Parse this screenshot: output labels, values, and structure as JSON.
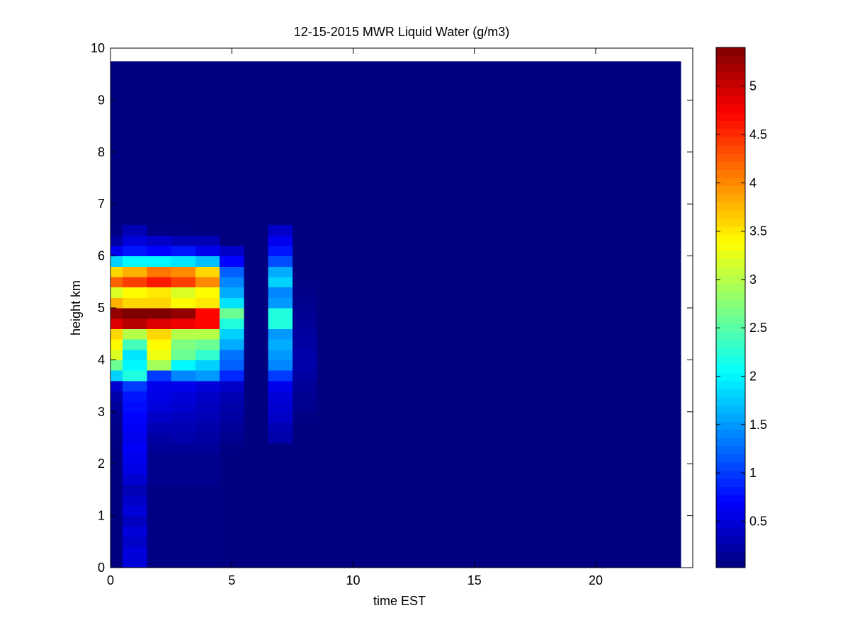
{
  "chart_data": {
    "type": "heatmap",
    "title": "12-15-2015 MWR Liquid Water (g/m3)",
    "xlabel": "time EST",
    "ylabel": "height km",
    "xlim": [
      0,
      24
    ],
    "ylim": [
      0,
      10
    ],
    "x_ticks": [
      0,
      5,
      10,
      15,
      20
    ],
    "y_ticks": [
      0,
      1,
      2,
      3,
      4,
      5,
      6,
      7,
      8,
      9,
      10
    ],
    "colormap": "jet",
    "colorbar": {
      "range": [
        0.02,
        5.4
      ],
      "ticks": [
        0.5,
        1,
        1.5,
        2,
        2.5,
        3,
        3.5,
        4,
        4.5,
        5
      ],
      "tick_labels": [
        "0.5",
        "1",
        "1.5",
        "2",
        "2.5",
        "3",
        "3.5",
        "4",
        "4.5",
        "5"
      ]
    },
    "x_edges": [
      0,
      0.5,
      1.5,
      2.5,
      3.5,
      4.5,
      5.5,
      6.5,
      7.5,
      8.5,
      23.5
    ],
    "y_edges": [
      0,
      0.2,
      0.4,
      0.6,
      0.8,
      1.0,
      1.2,
      1.4,
      1.6,
      1.8,
      2.0,
      2.2,
      2.4,
      2.6,
      2.8,
      3.0,
      3.2,
      3.4,
      3.6,
      3.8,
      4.0,
      4.2,
      4.4,
      4.6,
      4.8,
      5.0,
      5.2,
      5.4,
      5.6,
      5.8,
      6.0,
      6.2,
      6.4,
      6.6,
      6.8,
      7.0,
      9.75
    ],
    "column_values": [
      [
        0.02,
        0.02,
        0.02,
        0.02,
        0.02,
        0.02,
        0.02,
        0.02,
        0.02,
        0.02,
        0.02,
        0.03,
        0.05,
        0.07,
        0.1,
        0.15,
        0.25,
        0.45,
        1.8,
        2.6,
        3.2,
        3.4,
        3.6,
        4.9,
        5.3,
        3.8,
        3.2,
        4.2,
        3.6,
        1.8,
        0.6,
        0.2,
        0.05,
        0.03,
        0.02,
        0.02
      ],
      [
        0.5,
        0.5,
        0.4,
        0.5,
        0.35,
        0.5,
        0.4,
        0.3,
        0.45,
        0.55,
        0.6,
        0.65,
        0.6,
        0.65,
        0.7,
        0.75,
        0.8,
        1.0,
        2.2,
        2.0,
        1.9,
        2.4,
        3.0,
        5.1,
        5.4,
        3.6,
        3.4,
        4.4,
        3.8,
        2.0,
        0.8,
        0.5,
        0.3,
        0.02,
        0.02,
        0.02
      ],
      [
        0.05,
        0.05,
        0.05,
        0.05,
        0.05,
        0.05,
        0.05,
        0.05,
        0.1,
        0.1,
        0.1,
        0.15,
        0.2,
        0.3,
        0.4,
        0.5,
        0.55,
        0.6,
        1.0,
        2.9,
        3.3,
        3.4,
        3.6,
        4.9,
        5.4,
        3.6,
        3.5,
        4.6,
        4.1,
        2.0,
        0.7,
        0.4,
        0.05,
        0.02,
        0.02,
        0.02
      ],
      [
        0.05,
        0.05,
        0.05,
        0.05,
        0.05,
        0.05,
        0.05,
        0.05,
        0.1,
        0.1,
        0.1,
        0.15,
        0.25,
        0.3,
        0.35,
        0.45,
        0.5,
        0.6,
        1.4,
        2.0,
        2.6,
        2.7,
        3.0,
        4.8,
        5.3,
        3.4,
        3.2,
        4.4,
        4.0,
        1.9,
        0.8,
        0.3,
        0.05,
        0.02,
        0.02,
        0.02
      ],
      [
        0.05,
        0.05,
        0.05,
        0.05,
        0.05,
        0.05,
        0.05,
        0.05,
        0.1,
        0.1,
        0.1,
        0.15,
        0.2,
        0.25,
        0.3,
        0.35,
        0.4,
        0.5,
        1.5,
        1.8,
        2.3,
        2.6,
        3.0,
        4.7,
        4.7,
        3.5,
        3.4,
        4.0,
        3.6,
        1.7,
        0.6,
        0.3,
        0.02,
        0.02,
        0.02,
        0.02
      ],
      [
        0.02,
        0.02,
        0.02,
        0.02,
        0.02,
        0.02,
        0.02,
        0.02,
        0.02,
        0.02,
        0.02,
        0.05,
        0.1,
        0.15,
        0.2,
        0.25,
        0.3,
        0.4,
        0.9,
        1.2,
        1.3,
        1.6,
        1.8,
        2.2,
        2.6,
        1.9,
        1.6,
        1.4,
        1.2,
        0.7,
        0.4,
        0.02,
        0.02,
        0.02,
        0.02,
        0.02
      ],
      [
        0.02,
        0.02,
        0.02,
        0.02,
        0.02,
        0.02,
        0.02,
        0.02,
        0.02,
        0.02,
        0.02,
        0.02,
        0.02,
        0.02,
        0.02,
        0.02,
        0.02,
        0.02,
        0.02,
        0.02,
        0.02,
        0.02,
        0.02,
        0.02,
        0.02,
        0.02,
        0.02,
        0.02,
        0.02,
        0.02,
        0.02,
        0.02,
        0.02,
        0.02,
        0.02,
        0.02
      ],
      [
        0.02,
        0.02,
        0.02,
        0.02,
        0.02,
        0.02,
        0.02,
        0.02,
        0.02,
        0.02,
        0.02,
        0.02,
        0.25,
        0.3,
        0.4,
        0.45,
        0.5,
        0.6,
        1.0,
        1.4,
        1.5,
        1.6,
        1.5,
        2.2,
        2.2,
        1.5,
        1.4,
        1.8,
        1.6,
        1.1,
        0.8,
        0.6,
        0.4,
        0.02,
        0.02,
        0.02
      ],
      [
        0.02,
        0.02,
        0.02,
        0.02,
        0.02,
        0.02,
        0.02,
        0.02,
        0.02,
        0.02,
        0.02,
        0.02,
        0.02,
        0.02,
        0.05,
        0.1,
        0.12,
        0.15,
        0.2,
        0.25,
        0.25,
        0.2,
        0.18,
        0.15,
        0.12,
        0.1,
        0.08,
        0.05,
        0.02,
        0.02,
        0.02,
        0.02,
        0.02,
        0.02,
        0.02,
        0.02
      ],
      [
        0.02,
        0.02,
        0.02,
        0.02,
        0.02,
        0.02,
        0.02,
        0.02,
        0.02,
        0.02,
        0.02,
        0.02,
        0.02,
        0.02,
        0.02,
        0.02,
        0.02,
        0.02,
        0.02,
        0.02,
        0.02,
        0.02,
        0.02,
        0.02,
        0.02,
        0.02,
        0.02,
        0.02,
        0.02,
        0.02,
        0.02,
        0.02,
        0.02,
        0.02,
        0.02,
        0.02
      ]
    ]
  }
}
